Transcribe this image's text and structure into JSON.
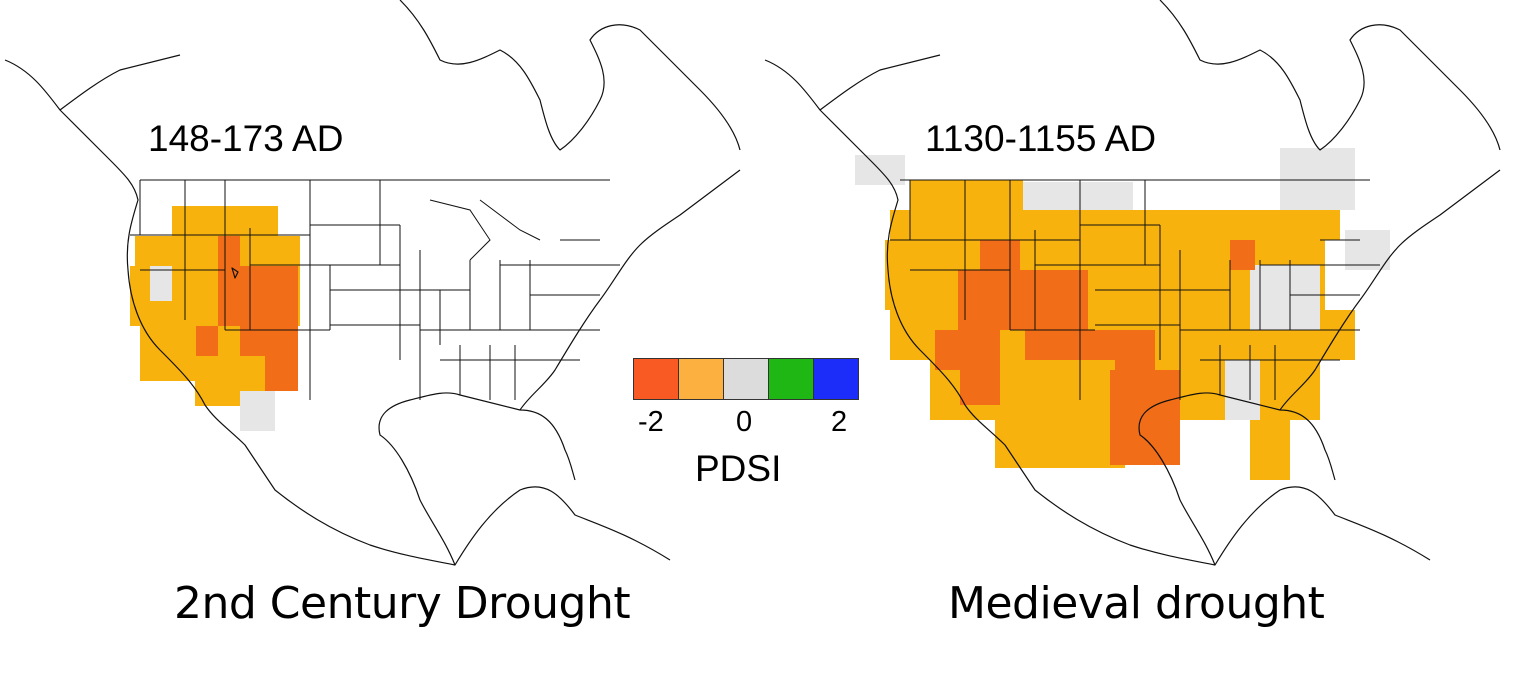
{
  "maps": [
    {
      "period": "148-173 AD",
      "caption": "2nd Century Drought"
    },
    {
      "period": "1130-1155 AD",
      "caption": "Medieval drought"
    }
  ],
  "legend": {
    "title": "PDSI",
    "ticks": [
      "-2",
      "0",
      "2"
    ],
    "colors": {
      "severe_drought": "#f95a23",
      "moderate_drought": "#fbb040",
      "normal": "#dcdcdc",
      "wet": "#1fb714",
      "very_wet": "#1c2cf9"
    },
    "swatches": [
      "#f95a23",
      "#fbb040",
      "#dcdcdc",
      "#1fb714",
      "#1c2cf9"
    ]
  },
  "fill_colors": {
    "dark_orange": "#f26d18",
    "orange": "#f8b20d",
    "gray": "#e6e6e6"
  }
}
